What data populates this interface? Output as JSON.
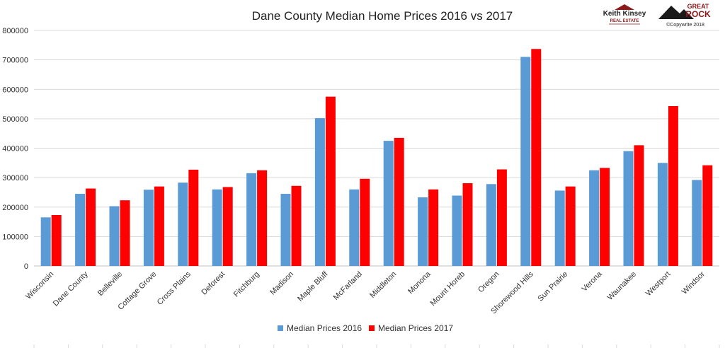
{
  "chart_data": {
    "type": "bar",
    "title": "Dane County Median Home Prices 2016 vs 2017",
    "xlabel": "",
    "ylabel": "",
    "ylim": [
      0,
      800000
    ],
    "yticks": [
      0,
      100000,
      200000,
      300000,
      400000,
      500000,
      600000,
      700000,
      800000
    ],
    "grid": true,
    "legend_position": "bottom",
    "categories": [
      "Wisconsin",
      "Dane County",
      "Belleville",
      "Cottage Grove",
      "Cross Plains",
      "Deforest",
      "Fitchburg",
      "Madison",
      "Maple Bluff",
      "McFarland",
      "Middleton",
      "Monona",
      "Mount Horeb",
      "Oregon",
      "Shorewood Hills",
      "Sun Prairie",
      "Verona",
      "Waunakee",
      "Westport",
      "Windsor"
    ],
    "series": [
      {
        "name": "Median Prices 2016",
        "color": "#5b9bd5",
        "values": [
          165000,
          245000,
          203000,
          259000,
          283000,
          260000,
          315000,
          245000,
          502000,
          260000,
          425000,
          233000,
          239000,
          278000,
          710000,
          256000,
          325000,
          390000,
          350000,
          292000
        ]
      },
      {
        "name": "Median Prices 2017",
        "color": "#ff0000",
        "values": [
          173000,
          263000,
          223000,
          270000,
          327000,
          268000,
          325000,
          272000,
          575000,
          296000,
          435000,
          260000,
          281000,
          328000,
          737000,
          270000,
          333000,
          410000,
          543000,
          342000
        ]
      }
    ]
  },
  "logos": {
    "keith_kinsey": {
      "name": "Keith Kinsey",
      "line": "REAL ESTATE"
    },
    "great_rock": {
      "line1": "GREAT",
      "line2": "ROCK"
    }
  },
  "copyright": "©Copywrite 2018",
  "colors": {
    "gridline": "#d9d9d9",
    "axis": "#bfbfbf"
  }
}
